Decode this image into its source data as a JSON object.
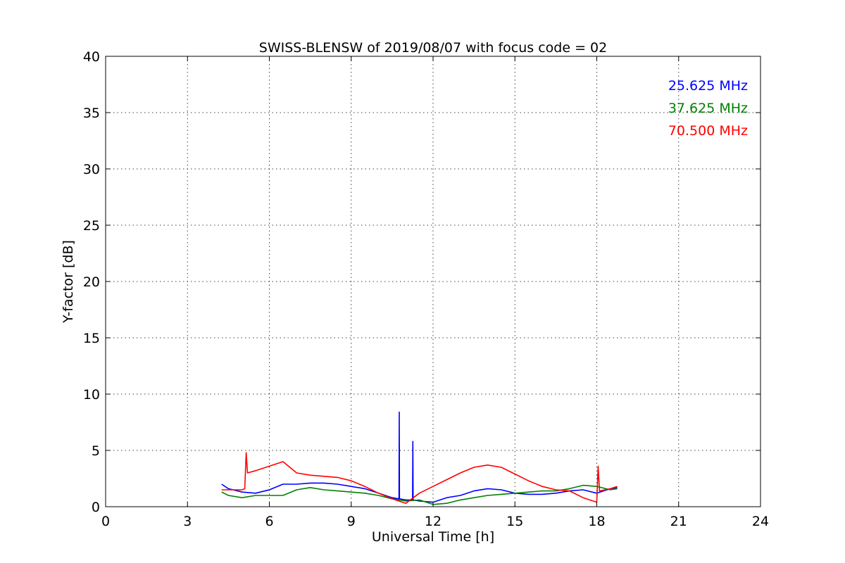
{
  "chart_data": {
    "type": "line",
    "title": "SWISS-BLENSW of 2019/08/07 with focus code = 02",
    "xlabel": "Universal Time [h]",
    "ylabel": "Y-factor [dB]",
    "xlim": [
      0,
      24
    ],
    "ylim": [
      0,
      40
    ],
    "xticks": [
      0,
      3,
      6,
      9,
      12,
      15,
      18,
      21,
      24
    ],
    "yticks": [
      0,
      5,
      10,
      15,
      20,
      25,
      30,
      35,
      40
    ],
    "xtick_labels": [
      "0",
      "3",
      "6",
      "9",
      "12",
      "15",
      "18",
      "21",
      "24"
    ],
    "ytick_labels": [
      "0",
      "5",
      "10",
      "15",
      "20",
      "25",
      "30",
      "35",
      "40"
    ],
    "grid": true,
    "legend_position": "top-right",
    "series": [
      {
        "name": "25.625 MHz",
        "color": "#0000ff",
        "x": [
          4.25,
          4.5,
          5.0,
          5.5,
          6.0,
          6.5,
          7.0,
          7.5,
          8.0,
          8.5,
          9.0,
          9.5,
          10.0,
          10.5,
          10.75,
          10.76,
          10.77,
          11.0,
          11.25,
          11.26,
          11.27,
          11.5,
          12.0,
          12.5,
          13.0,
          13.5,
          14.0,
          14.5,
          15.0,
          15.5,
          16.0,
          16.5,
          17.0,
          17.5,
          18.0,
          18.5,
          18.75
        ],
        "y": [
          2.0,
          1.6,
          1.3,
          1.2,
          1.5,
          2.0,
          2.0,
          2.1,
          2.1,
          2.0,
          1.8,
          1.6,
          1.2,
          0.8,
          0.7,
          8.4,
          0.7,
          0.6,
          0.6,
          5.8,
          0.6,
          0.5,
          0.4,
          0.8,
          1.0,
          1.4,
          1.6,
          1.5,
          1.2,
          1.1,
          1.1,
          1.2,
          1.4,
          1.5,
          1.2,
          1.6,
          1.7
        ]
      },
      {
        "name": "37.625 MHz",
        "color": "#008000",
        "x": [
          4.25,
          4.5,
          5.0,
          5.5,
          6.0,
          6.5,
          7.0,
          7.5,
          8.0,
          8.5,
          9.0,
          9.5,
          10.0,
          10.5,
          11.0,
          11.5,
          12.0,
          12.5,
          13.0,
          13.5,
          14.0,
          14.5,
          15.0,
          15.5,
          16.0,
          16.5,
          17.0,
          17.5,
          18.0,
          18.5,
          18.75
        ],
        "y": [
          1.3,
          1.0,
          0.8,
          1.0,
          1.0,
          1.0,
          1.5,
          1.7,
          1.5,
          1.4,
          1.3,
          1.2,
          1.0,
          0.7,
          0.5,
          0.6,
          0.2,
          0.3,
          0.6,
          0.8,
          1.0,
          1.1,
          1.2,
          1.3,
          1.4,
          1.4,
          1.6,
          1.9,
          1.8,
          1.5,
          1.6
        ]
      },
      {
        "name": "70.500 MHz",
        "color": "#ff0000",
        "x": [
          4.25,
          4.5,
          5.0,
          5.1,
          5.15,
          5.2,
          5.5,
          6.0,
          6.5,
          7.0,
          7.5,
          8.0,
          8.5,
          9.0,
          9.5,
          10.0,
          10.5,
          11.0,
          11.5,
          12.0,
          12.5,
          13.0,
          13.5,
          14.0,
          14.5,
          15.0,
          15.5,
          16.0,
          16.5,
          17.0,
          17.5,
          18.0,
          18.05,
          18.1,
          18.5,
          18.75
        ],
        "y": [
          1.5,
          1.5,
          1.5,
          1.6,
          4.8,
          3.0,
          3.2,
          3.6,
          4.0,
          3.0,
          2.8,
          2.7,
          2.6,
          2.3,
          1.8,
          1.2,
          0.7,
          0.3,
          1.2,
          1.8,
          2.4,
          3.0,
          3.5,
          3.7,
          3.5,
          2.9,
          2.3,
          1.8,
          1.5,
          1.4,
          0.8,
          0.4,
          3.6,
          1.4,
          1.6,
          1.8
        ]
      }
    ]
  }
}
